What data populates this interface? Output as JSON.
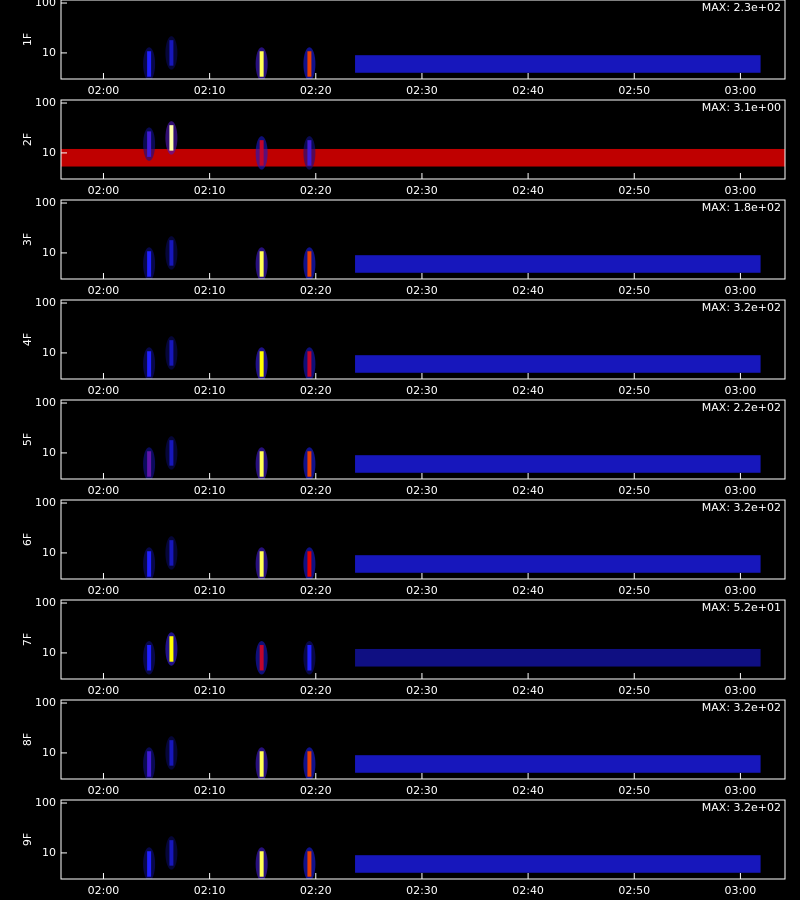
{
  "chart_data": [
    {
      "type": "heatmap",
      "ylabel": "1F",
      "max_label": "MAX: 2.3e+02",
      "log_y": true,
      "xlim": [
        116,
        184.2
      ],
      "ylim": [
        3,
        115
      ],
      "yticks": [
        10,
        100
      ],
      "xticks": [
        {
          "value": 120,
          "label": "02:00"
        },
        {
          "value": 130,
          "label": "02:10"
        },
        {
          "value": 140,
          "label": "02:20"
        },
        {
          "value": 150,
          "label": "02:30"
        },
        {
          "value": 160,
          "label": "02:40"
        },
        {
          "value": 170,
          "label": "02:50"
        },
        {
          "value": 180,
          "label": "03:00"
        }
      ],
      "bursts": {
        "x": [
          124.3,
          126.4,
          134.9,
          139.4
        ],
        "y": [
          6,
          10,
          6,
          6
        ],
        "intensity": [
          0.35,
          0.25,
          0.9,
          0.7
        ]
      },
      "band": {
        "x": [
          143.7,
          181.9
        ],
        "y": 6,
        "intensity": 0.3
      }
    },
    {
      "type": "heatmap",
      "ylabel": "2F",
      "max_label": "MAX: 3.1e+00",
      "log_y": true,
      "xlim": [
        116,
        184.2
      ],
      "ylim": [
        3,
        115
      ],
      "yticks": [
        10,
        100
      ],
      "xticks": [
        {
          "value": 120,
          "label": "02:00"
        },
        {
          "value": 130,
          "label": "02:10"
        },
        {
          "value": 140,
          "label": "02:20"
        },
        {
          "value": 150,
          "label": "02:30"
        },
        {
          "value": 160,
          "label": "02:40"
        },
        {
          "value": 170,
          "label": "02:50"
        },
        {
          "value": 180,
          "label": "03:00"
        }
      ],
      "bursts": {
        "x": [
          124.3,
          126.4,
          134.9,
          139.4
        ],
        "y": [
          15,
          20,
          10,
          10
        ],
        "intensity": [
          0.4,
          0.95,
          0.6,
          0.4
        ]
      },
      "band": {
        "x": [
          116,
          184.2
        ],
        "y": 8,
        "intensity": 0.65
      }
    },
    {
      "type": "heatmap",
      "ylabel": "3F",
      "max_label": "MAX: 1.8e+02",
      "log_y": true,
      "xlim": [
        116,
        184.2
      ],
      "ylim": [
        3,
        115
      ],
      "yticks": [
        10,
        100
      ],
      "xticks": [
        {
          "value": 120,
          "label": "02:00"
        },
        {
          "value": 130,
          "label": "02:10"
        },
        {
          "value": 140,
          "label": "02:20"
        },
        {
          "value": 150,
          "label": "02:30"
        },
        {
          "value": 160,
          "label": "02:40"
        },
        {
          "value": 170,
          "label": "02:50"
        },
        {
          "value": 180,
          "label": "03:00"
        }
      ],
      "bursts": {
        "x": [
          124.3,
          126.4,
          134.9,
          139.4
        ],
        "y": [
          6,
          10,
          6,
          6
        ],
        "intensity": [
          0.35,
          0.25,
          0.9,
          0.7
        ]
      },
      "band": {
        "x": [
          143.7,
          181.9
        ],
        "y": 6,
        "intensity": 0.3
      }
    },
    {
      "type": "heatmap",
      "ylabel": "4F",
      "max_label": "MAX: 3.2e+02",
      "log_y": true,
      "xlim": [
        116,
        184.2
      ],
      "ylim": [
        3,
        115
      ],
      "yticks": [
        10,
        100
      ],
      "xticks": [
        {
          "value": 120,
          "label": "02:00"
        },
        {
          "value": 130,
          "label": "02:10"
        },
        {
          "value": 140,
          "label": "02:20"
        },
        {
          "value": 150,
          "label": "02:30"
        },
        {
          "value": 160,
          "label": "02:40"
        },
        {
          "value": 170,
          "label": "02:50"
        },
        {
          "value": 180,
          "label": "03:00"
        }
      ],
      "bursts": {
        "x": [
          124.3,
          126.4,
          134.9,
          139.4
        ],
        "y": [
          6,
          10,
          6,
          6
        ],
        "intensity": [
          0.35,
          0.25,
          0.85,
          0.6
        ]
      },
      "band": {
        "x": [
          143.7,
          181.9
        ],
        "y": 6,
        "intensity": 0.3
      }
    },
    {
      "type": "heatmap",
      "ylabel": "5F",
      "max_label": "MAX: 2.2e+02",
      "log_y": true,
      "xlim": [
        116,
        184.2
      ],
      "ylim": [
        3,
        115
      ],
      "yticks": [
        10,
        100
      ],
      "xticks": [
        {
          "value": 120,
          "label": "02:00"
        },
        {
          "value": 130,
          "label": "02:10"
        },
        {
          "value": 140,
          "label": "02:20"
        },
        {
          "value": 150,
          "label": "02:30"
        },
        {
          "value": 160,
          "label": "02:40"
        },
        {
          "value": 170,
          "label": "02:50"
        },
        {
          "value": 180,
          "label": "03:00"
        }
      ],
      "bursts": {
        "x": [
          124.3,
          126.4,
          134.9,
          139.4
        ],
        "y": [
          6,
          10,
          6,
          6
        ],
        "intensity": [
          0.45,
          0.25,
          0.9,
          0.7
        ]
      },
      "band": {
        "x": [
          143.7,
          181.9
        ],
        "y": 6,
        "intensity": 0.3
      }
    },
    {
      "type": "heatmap",
      "ylabel": "6F",
      "max_label": "MAX: 3.2e+02",
      "log_y": true,
      "xlim": [
        116,
        184.2
      ],
      "ylim": [
        3,
        115
      ],
      "yticks": [
        10,
        100
      ],
      "xticks": [
        {
          "value": 120,
          "label": "02:00"
        },
        {
          "value": 130,
          "label": "02:10"
        },
        {
          "value": 140,
          "label": "02:20"
        },
        {
          "value": 150,
          "label": "02:30"
        },
        {
          "value": 160,
          "label": "02:40"
        },
        {
          "value": 170,
          "label": "02:50"
        },
        {
          "value": 180,
          "label": "03:00"
        }
      ],
      "bursts": {
        "x": [
          124.3,
          126.4,
          134.9,
          139.4
        ],
        "y": [
          6,
          10,
          6,
          6
        ],
        "intensity": [
          0.35,
          0.25,
          0.9,
          0.65
        ]
      },
      "band": {
        "x": [
          143.7,
          181.9
        ],
        "y": 6,
        "intensity": 0.3
      }
    },
    {
      "type": "heatmap",
      "ylabel": "7F",
      "max_label": "MAX: 5.2e+01",
      "log_y": true,
      "xlim": [
        116,
        184.2
      ],
      "ylim": [
        3,
        115
      ],
      "yticks": [
        10,
        100
      ],
      "xticks": [
        {
          "value": 120,
          "label": "02:00"
        },
        {
          "value": 130,
          "label": "02:10"
        },
        {
          "value": 140,
          "label": "02:20"
        },
        {
          "value": 150,
          "label": "02:30"
        },
        {
          "value": 160,
          "label": "02:40"
        },
        {
          "value": 170,
          "label": "02:50"
        },
        {
          "value": 180,
          "label": "03:00"
        }
      ],
      "bursts": {
        "x": [
          124.3,
          126.4,
          134.9,
          139.4
        ],
        "y": [
          8,
          12,
          8,
          8
        ],
        "intensity": [
          0.35,
          0.85,
          0.6,
          0.35
        ]
      },
      "band": {
        "x": [
          143.7,
          181.9
        ],
        "y": 8,
        "intensity": 0.2
      }
    },
    {
      "type": "heatmap",
      "ylabel": "8F",
      "max_label": "MAX: 3.2e+02",
      "log_y": true,
      "xlim": [
        116,
        184.2
      ],
      "ylim": [
        3,
        115
      ],
      "yticks": [
        10,
        100
      ],
      "xticks": [
        {
          "value": 120,
          "label": "02:00"
        },
        {
          "value": 130,
          "label": "02:10"
        },
        {
          "value": 140,
          "label": "02:20"
        },
        {
          "value": 150,
          "label": "02:30"
        },
        {
          "value": 160,
          "label": "02:40"
        },
        {
          "value": 170,
          "label": "02:50"
        },
        {
          "value": 180,
          "label": "03:00"
        }
      ],
      "bursts": {
        "x": [
          124.3,
          126.4,
          134.9,
          139.4
        ],
        "y": [
          6,
          10,
          6,
          6
        ],
        "intensity": [
          0.4,
          0.25,
          0.9,
          0.7
        ]
      },
      "band": {
        "x": [
          143.7,
          181.9
        ],
        "y": 6,
        "intensity": 0.3
      }
    },
    {
      "type": "heatmap",
      "ylabel": "9F",
      "max_label": "MAX: 3.2e+02",
      "log_y": true,
      "xlim": [
        116,
        184.2
      ],
      "ylim": [
        3,
        115
      ],
      "yticks": [
        10,
        100
      ],
      "xticks": [
        {
          "value": 120,
          "label": "02:00"
        },
        {
          "value": 130,
          "label": "02:10"
        },
        {
          "value": 140,
          "label": "02:20"
        },
        {
          "value": 150,
          "label": "02:30"
        },
        {
          "value": 160,
          "label": "02:40"
        },
        {
          "value": 170,
          "label": "02:50"
        },
        {
          "value": 180,
          "label": "03:00"
        }
      ],
      "bursts": {
        "x": [
          124.3,
          126.4,
          134.9,
          139.4
        ],
        "y": [
          6,
          10,
          6,
          6
        ],
        "intensity": [
          0.35,
          0.25,
          0.9,
          0.7
        ]
      },
      "band": {
        "x": [
          143.7,
          181.9
        ],
        "y": 6,
        "intensity": 0.3
      }
    }
  ]
}
